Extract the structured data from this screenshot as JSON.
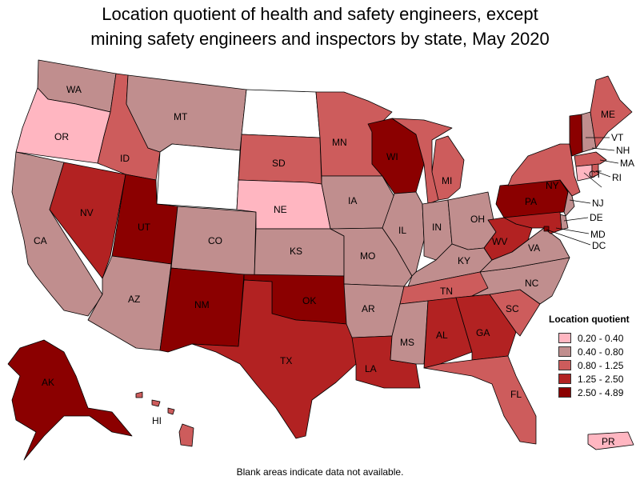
{
  "title_line1": "Location quotient of health and safety engineers, except",
  "title_line2": "mining safety engineers and inspectors by state, May 2020",
  "legend": {
    "title": "Location quotient",
    "items": [
      {
        "label": "0.20 - 0.40",
        "color": "#ffb6c1"
      },
      {
        "label": "0.40 - 0.80",
        "color": "#c08e8e"
      },
      {
        "label": "0.80 - 1.25",
        "color": "#cd5c5c"
      },
      {
        "label": "1.25 - 2.50",
        "color": "#b22222"
      },
      {
        "label": "2.50 - 4.89",
        "color": "#8b0000"
      }
    ]
  },
  "footnote": "Blank areas indicate data not available.",
  "states": {
    "WA": "0.40 - 0.80",
    "OR": "0.20 - 0.40",
    "CA": "0.40 - 0.80",
    "NV": "1.25 - 2.50",
    "ID": "0.80 - 1.25",
    "MT": "0.40 - 0.80",
    "WY": "",
    "UT": "2.50 - 4.89",
    "AZ": "0.40 - 0.80",
    "CO": "0.40 - 0.80",
    "NM": "2.50 - 4.89",
    "ND": "",
    "SD": "0.80 - 1.25",
    "NE": "0.20 - 0.40",
    "KS": "0.40 - 0.80",
    "OK": "2.50 - 4.89",
    "TX": "1.25 - 2.50",
    "MN": "0.80 - 1.25",
    "IA": "0.40 - 0.80",
    "MO": "0.40 - 0.80",
    "AR": "0.40 - 0.80",
    "LA": "1.25 - 2.50",
    "WI": "2.50 - 4.89",
    "IL": "0.40 - 0.80",
    "MI": "0.80 - 1.25",
    "IN": "0.40 - 0.80",
    "OH": "0.40 - 0.80",
    "KY": "0.40 - 0.80",
    "TN": "0.80 - 1.25",
    "MS": "0.40 - 0.80",
    "AL": "1.25 - 2.50",
    "GA": "1.25 - 2.50",
    "FL": "0.80 - 1.25",
    "SC": "0.80 - 1.25",
    "NC": "0.40 - 0.80",
    "VA": "0.40 - 0.80",
    "WV": "1.25 - 2.50",
    "PA": "2.50 - 4.89",
    "NY": "0.80 - 1.25",
    "NJ": "0.40 - 0.80",
    "DE": "0.40 - 0.80",
    "MD": "1.25 - 2.50",
    "DC": "2.50 - 4.89",
    "ME": "0.80 - 1.25",
    "VT": "2.50 - 4.89",
    "NH": "0.40 - 0.80",
    "MA": "0.80 - 1.25",
    "RI": "0.80 - 1.25",
    "CT": "0.20 - 0.40",
    "AK": "2.50 - 4.89",
    "HI": "0.80 - 1.25",
    "PR": "0.20 - 0.40"
  },
  "labels": {
    "WA": "WA",
    "OR": "OR",
    "CA": "CA",
    "NV": "NV",
    "ID": "ID",
    "MT": "MT",
    "UT": "UT",
    "AZ": "AZ",
    "CO": "CO",
    "NM": "NM",
    "SD": "SD",
    "NE": "NE",
    "KS": "KS",
    "OK": "OK",
    "TX": "TX",
    "MN": "MN",
    "IA": "IA",
    "MO": "MO",
    "AR": "AR",
    "LA": "LA",
    "WI": "WI",
    "IL": "IL",
    "MI": "MI",
    "IN": "IN",
    "OH": "OH",
    "KY": "KY",
    "TN": "TN",
    "MS": "MS",
    "AL": "AL",
    "GA": "GA",
    "FL": "FL",
    "SC": "SC",
    "NC": "NC",
    "VA": "VA",
    "WV": "WV",
    "PA": "PA",
    "NY": "NY",
    "NJ": "NJ",
    "DE": "DE",
    "MD": "MD",
    "DC": "DC",
    "ME": "ME",
    "VT": "VT",
    "NH": "NH",
    "MA": "MA",
    "RI": "RI",
    "CT": "CT",
    "AK": "AK",
    "HI": "HI",
    "PR": "PR"
  }
}
